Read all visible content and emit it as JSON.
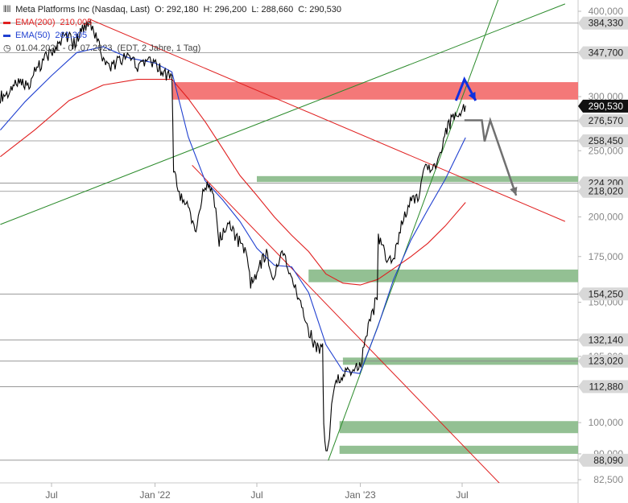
{
  "header": {
    "icon": "candlestick-icon",
    "title": "Meta Platforms Inc (Nasdaq, Last)",
    "ohlc": {
      "o_label": "O:",
      "o": "292,180",
      "h_label": "H:",
      "h": "296,200",
      "l_label": "L:",
      "l": "288,660",
      "c_label": "C:",
      "c": "290,530"
    },
    "ema200": {
      "label": "EMA(200)",
      "value": "210,005",
      "color": "#e02020"
    },
    "ema50": {
      "label": "EMA(50)",
      "value": "261,305",
      "color": "#2040d0"
    },
    "range_icon": "clock-icon",
    "range": "01.04.2021 - 07.07.2023",
    "range_note": "(EDT, 2 Jahre, 1 Tag)"
  },
  "chart_data": {
    "type": "line",
    "y_axis": {
      "scale": "log",
      "ticks": [
        400000,
        300000,
        250000,
        200000,
        175000,
        150000,
        125000,
        100000,
        90000,
        82500
      ],
      "tick_labels": [
        "400,000",
        "300,000",
        "250,000",
        "200,000",
        "175,000",
        "150,000",
        "125,000",
        "100,000",
        "90,000",
        "82,500"
      ],
      "range": [
        80000,
        420000
      ]
    },
    "x_axis": {
      "tick_labels": [
        "Jul",
        "Jan '22",
        "Jul",
        "Jan '23",
        "Jul"
      ],
      "tick_dates": [
        "2021-07-01",
        "2022-01-01",
        "2022-07-01",
        "2023-01-01",
        "2023-07-01"
      ],
      "range": [
        "2021-04-01",
        "2023-12-31"
      ]
    },
    "price_labels": [
      {
        "value": 384330,
        "label": "384,330",
        "style": "grey"
      },
      {
        "value": 347700,
        "label": "347,700",
        "style": "grey"
      },
      {
        "value": 290530,
        "label": "290,530",
        "style": "last"
      },
      {
        "value": 276570,
        "label": "276,570",
        "style": "grey"
      },
      {
        "value": 258450,
        "label": "258,450",
        "style": "grey"
      },
      {
        "value": 224200,
        "label": "224,200",
        "style": "grey"
      },
      {
        "value": 218020,
        "label": "218,020",
        "style": "grey"
      },
      {
        "value": 154250,
        "label": "154,250",
        "style": "grey"
      },
      {
        "value": 132140,
        "label": "132,140",
        "style": "grey"
      },
      {
        "value": 123020,
        "label": "123,020",
        "style": "grey"
      },
      {
        "value": 112880,
        "label": "112,880",
        "style": "grey"
      },
      {
        "value": 88090,
        "label": "88,090",
        "style": "grey"
      }
    ],
    "horizontal_lines": [
      384330,
      347700,
      276570,
      258450,
      224200,
      218020,
      154250,
      132140,
      123020,
      112880,
      88090
    ],
    "zones": [
      {
        "name": "resistance",
        "from": 297000,
        "to": 315000,
        "start": "2022-02-01",
        "color": "#f47878"
      },
      {
        "name": "support",
        "from": 225000,
        "to": 229500,
        "start": "2022-07-01",
        "color": "#93c093"
      },
      {
        "name": "support",
        "from": 160500,
        "to": 167500,
        "start": "2022-10-01",
        "color": "#93c093"
      },
      {
        "name": "support",
        "from": 121500,
        "to": 124500,
        "start": "2022-12-01",
        "color": "#93c093"
      },
      {
        "name": "support",
        "from": 96500,
        "to": 100500,
        "start": "2022-11-25",
        "color": "#93c093"
      },
      {
        "name": "support",
        "from": 90000,
        "to": 92500,
        "start": "2022-11-25",
        "color": "#93c093"
      }
    ],
    "trendlines": [
      {
        "color": "#2a8a2a",
        "p1": [
          "2021-04-01",
          195000
        ],
        "p2": [
          "2023-12-31",
          410000
        ]
      },
      {
        "color": "#2a8a2a",
        "p1": [
          "2022-11-05",
          88000
        ],
        "p2": [
          "2023-09-05",
          420000
        ]
      },
      {
        "color": "#e02020",
        "p1": [
          "2021-09-05",
          390000
        ],
        "p2": [
          "2023-12-31",
          197000
        ]
      },
      {
        "color": "#e02020",
        "p1": [
          "2022-03-08",
          238000
        ],
        "p2": [
          "2023-09-15",
          80000
        ]
      }
    ],
    "series": [
      {
        "name": "Meta Platforms Inc",
        "color": "#000000",
        "points": [
          [
            "2021-04-01",
            300000
          ],
          [
            "2021-04-20",
            305000
          ],
          [
            "2021-05-05",
            318000
          ],
          [
            "2021-05-20",
            312000
          ],
          [
            "2021-06-05",
            330000
          ],
          [
            "2021-06-25",
            345000
          ],
          [
            "2021-07-10",
            355000
          ],
          [
            "2021-07-25",
            372000
          ],
          [
            "2021-08-10",
            358000
          ],
          [
            "2021-08-25",
            376000
          ],
          [
            "2021-09-08",
            380000
          ],
          [
            "2021-09-22",
            360000
          ],
          [
            "2021-10-05",
            330000
          ],
          [
            "2021-10-20",
            335000
          ],
          [
            "2021-11-01",
            340000
          ],
          [
            "2021-11-15",
            344000
          ],
          [
            "2021-12-01",
            330000
          ],
          [
            "2021-12-15",
            335000
          ],
          [
            "2021-12-31",
            336000
          ],
          [
            "2022-01-15",
            325000
          ],
          [
            "2022-01-31",
            318000
          ],
          [
            "2022-02-03",
            237000
          ],
          [
            "2022-02-15",
            215000
          ],
          [
            "2022-03-01",
            205000
          ],
          [
            "2022-03-15",
            192000
          ],
          [
            "2022-03-31",
            224000
          ],
          [
            "2022-04-15",
            215000
          ],
          [
            "2022-04-25",
            185000
          ],
          [
            "2022-05-10",
            196000
          ],
          [
            "2022-05-25",
            187000
          ],
          [
            "2022-06-10",
            178000
          ],
          [
            "2022-06-20",
            160000
          ],
          [
            "2022-07-05",
            169000
          ],
          [
            "2022-07-20",
            178000
          ],
          [
            "2022-07-28",
            161000
          ],
          [
            "2022-08-15",
            180000
          ],
          [
            "2022-08-31",
            162000
          ],
          [
            "2022-09-15",
            150000
          ],
          [
            "2022-09-30",
            137000
          ],
          [
            "2022-10-15",
            128000
          ],
          [
            "2022-10-26",
            130000
          ],
          [
            "2022-10-28",
            98000
          ],
          [
            "2022-11-03",
            89000
          ],
          [
            "2022-11-15",
            113000
          ],
          [
            "2022-11-30",
            118000
          ],
          [
            "2022-12-15",
            120000
          ],
          [
            "2022-12-31",
            120000
          ],
          [
            "2023-01-15",
            137000
          ],
          [
            "2023-01-31",
            153000
          ],
          [
            "2023-02-02",
            188000
          ],
          [
            "2023-02-15",
            175000
          ],
          [
            "2023-03-01",
            174000
          ],
          [
            "2023-03-15",
            196000
          ],
          [
            "2023-03-31",
            211000
          ],
          [
            "2023-04-15",
            214000
          ],
          [
            "2023-04-27",
            238000
          ],
          [
            "2023-05-15",
            235000
          ],
          [
            "2023-05-31",
            264000
          ],
          [
            "2023-06-15",
            281000
          ],
          [
            "2023-06-30",
            286000
          ],
          [
            "2023-07-07",
            291000
          ]
        ]
      },
      {
        "name": "EMA(50)",
        "color": "#2040d0",
        "points": [
          [
            "2021-04-01",
            268000
          ],
          [
            "2021-05-15",
            295000
          ],
          [
            "2021-07-01",
            322000
          ],
          [
            "2021-08-15",
            348000
          ],
          [
            "2021-10-01",
            355000
          ],
          [
            "2021-11-15",
            342000
          ],
          [
            "2022-01-01",
            336000
          ],
          [
            "2022-01-31",
            326000
          ],
          [
            "2022-03-01",
            262000
          ],
          [
            "2022-03-31",
            226000
          ],
          [
            "2022-05-01",
            212000
          ],
          [
            "2022-06-01",
            197000
          ],
          [
            "2022-07-01",
            180000
          ],
          [
            "2022-08-01",
            170000
          ],
          [
            "2022-09-01",
            169000
          ],
          [
            "2022-10-01",
            155000
          ],
          [
            "2022-11-01",
            130000
          ],
          [
            "2022-12-01",
            119000
          ],
          [
            "2022-12-31",
            118000
          ],
          [
            "2023-02-01",
            138000
          ],
          [
            "2023-03-01",
            162000
          ],
          [
            "2023-04-01",
            185000
          ],
          [
            "2023-05-01",
            205000
          ],
          [
            "2023-06-01",
            227000
          ],
          [
            "2023-07-07",
            261305
          ]
        ]
      },
      {
        "name": "EMA(200)",
        "color": "#e02020",
        "points": [
          [
            "2021-04-01",
            245000
          ],
          [
            "2021-06-01",
            268000
          ],
          [
            "2021-08-01",
            296000
          ],
          [
            "2021-10-01",
            312000
          ],
          [
            "2021-12-01",
            318000
          ],
          [
            "2022-01-31",
            318000
          ],
          [
            "2022-03-01",
            298000
          ],
          [
            "2022-04-01",
            275000
          ],
          [
            "2022-05-01",
            252000
          ],
          [
            "2022-06-01",
            230000
          ],
          [
            "2022-07-01",
            215000
          ],
          [
            "2022-08-01",
            200000
          ],
          [
            "2022-09-01",
            188000
          ],
          [
            "2022-10-01",
            178000
          ],
          [
            "2022-11-01",
            165000
          ],
          [
            "2022-12-01",
            160000
          ],
          [
            "2023-01-01",
            159000
          ],
          [
            "2023-02-01",
            162000
          ],
          [
            "2023-03-01",
            168000
          ],
          [
            "2023-04-01",
            175000
          ],
          [
            "2023-05-01",
            183000
          ],
          [
            "2023-06-01",
            194000
          ],
          [
            "2023-07-07",
            210005
          ]
        ]
      }
    ],
    "annotations": [
      {
        "type": "arrow",
        "color": "#1030e0",
        "direction": "up",
        "points": [
          [
            "2023-06-20",
            296000
          ],
          [
            "2023-07-05",
            318000
          ],
          [
            "2023-07-25",
            296000
          ]
        ]
      },
      {
        "type": "arrow",
        "color": "#707070",
        "direction": "down",
        "points": [
          [
            "2023-07-05",
            277000
          ],
          [
            "2023-08-05",
            277000
          ],
          [
            "2023-08-10",
            258000
          ],
          [
            "2023-08-20",
            277000
          ],
          [
            "2023-10-05",
            215000
          ]
        ]
      }
    ]
  }
}
